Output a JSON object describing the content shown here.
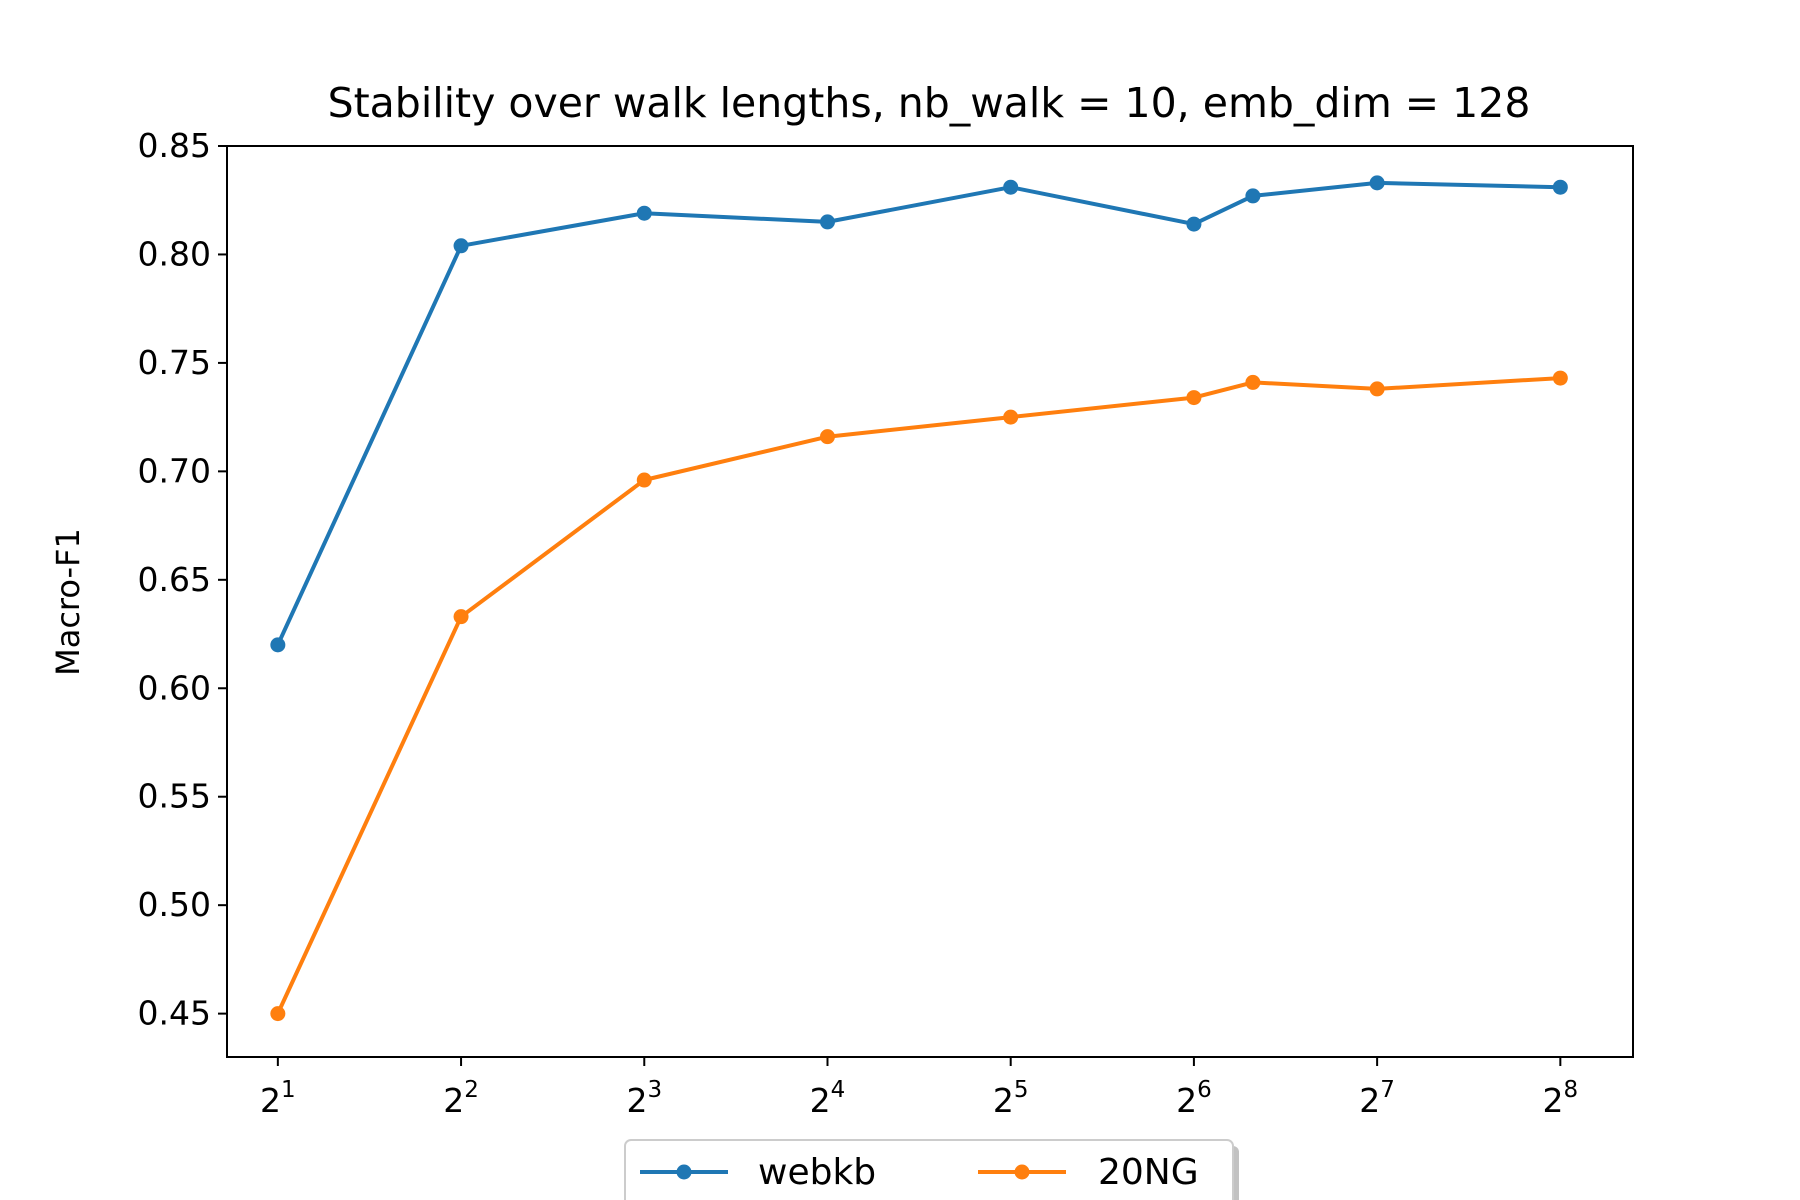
{
  "chart_data": {
    "type": "line",
    "title": "Stability over walk lengths, nb_walk = 10, emb_dim = 128",
    "xlabel": "",
    "ylabel": "Macro-F1",
    "x_scale": "log2",
    "xlim": [
      1.65,
      337
    ],
    "ylim": [
      0.43,
      0.85
    ],
    "grid": false,
    "legend_placement": "bottom-center",
    "x_ticks": [
      {
        "value": 2,
        "base": "2",
        "exp": "1"
      },
      {
        "value": 4,
        "base": "2",
        "exp": "2"
      },
      {
        "value": 8,
        "base": "2",
        "exp": "3"
      },
      {
        "value": 16,
        "base": "2",
        "exp": "4"
      },
      {
        "value": 32,
        "base": "2",
        "exp": "5"
      },
      {
        "value": 64,
        "base": "2",
        "exp": "6"
      },
      {
        "value": 128,
        "base": "2",
        "exp": "7"
      },
      {
        "value": 256,
        "base": "2",
        "exp": "8"
      }
    ],
    "y_ticks": [
      "0.45",
      "0.50",
      "0.55",
      "0.60",
      "0.65",
      "0.70",
      "0.75",
      "0.80",
      "0.85"
    ],
    "x": [
      2,
      4,
      8,
      16,
      32,
      64,
      80,
      128,
      256
    ],
    "series": [
      {
        "name": "webkb",
        "color": "#1f77b4",
        "values": [
          0.62,
          0.804,
          0.819,
          0.815,
          0.831,
          0.814,
          0.827,
          0.833,
          0.831
        ]
      },
      {
        "name": "20NG",
        "color": "#ff7f0e",
        "values": [
          0.45,
          0.633,
          0.696,
          0.716,
          0.725,
          0.734,
          0.741,
          0.738,
          0.743
        ]
      }
    ]
  }
}
